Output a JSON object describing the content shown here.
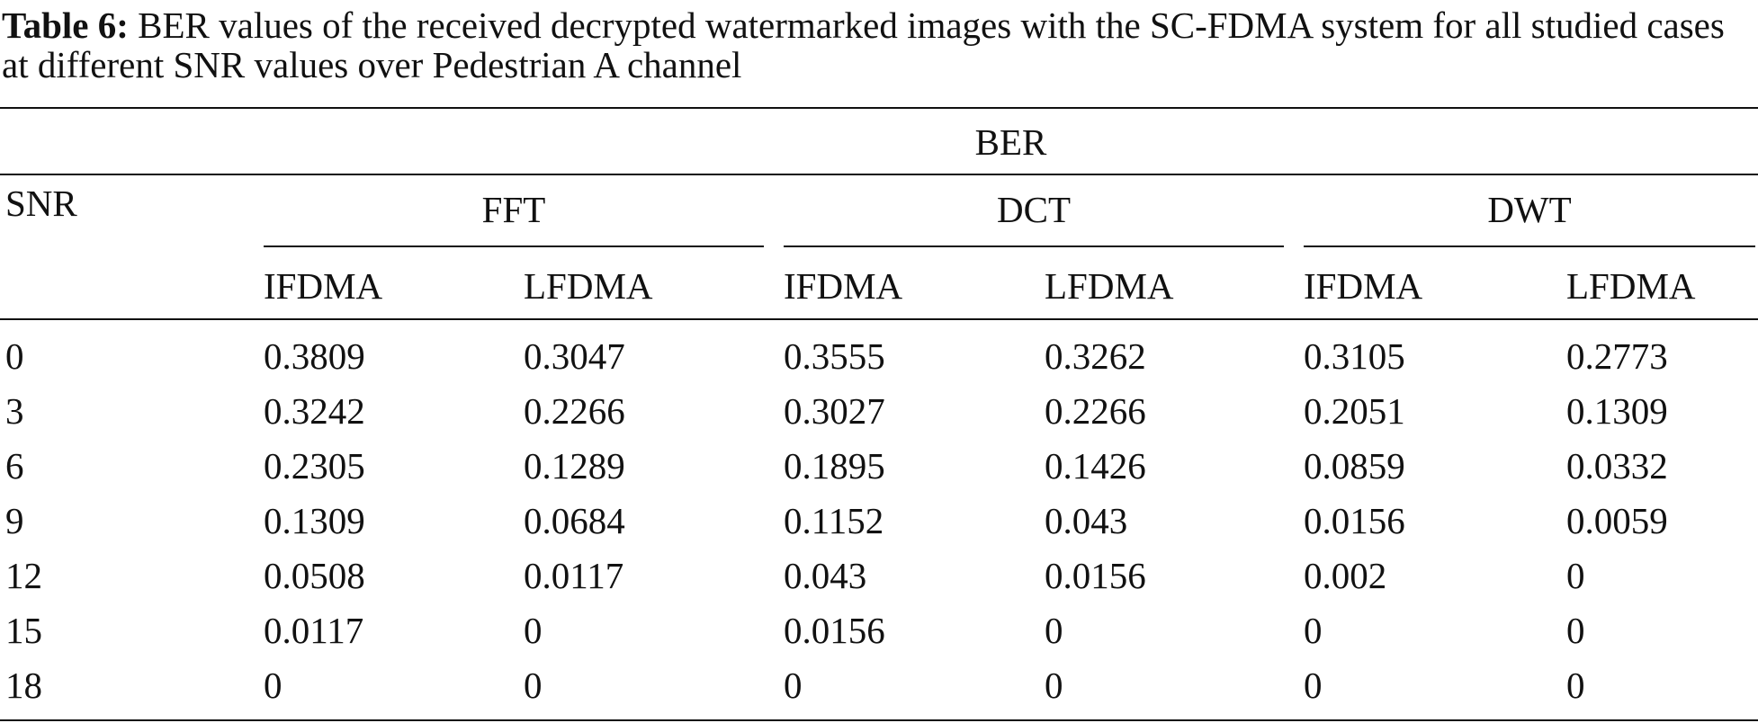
{
  "caption": {
    "label": "Table 6:",
    "text": "BER values of the received decrypted watermarked images with the SC-FDMA system for all studied cases at different SNR values over Pedestrian A channel"
  },
  "table": {
    "super_header": "BER",
    "row_header": "SNR",
    "groups": [
      "FFT",
      "DCT",
      "DWT"
    ],
    "subheaders": [
      "IFDMA",
      "LFDMA",
      "IFDMA",
      "LFDMA",
      "IFDMA",
      "LFDMA"
    ],
    "rows": [
      [
        0,
        0.3809,
        0.3047,
        0.3555,
        0.3262,
        0.3105,
        0.2773
      ],
      [
        3,
        0.3242,
        0.2266,
        0.3027,
        0.2266,
        0.2051,
        0.1309
      ],
      [
        6,
        0.2305,
        0.1289,
        0.1895,
        0.1426,
        0.0859,
        0.0332
      ],
      [
        9,
        0.1309,
        0.0684,
        0.1152,
        0.043,
        0.0156,
        0.0059
      ],
      [
        12,
        0.0508,
        0.0117,
        0.043,
        0.0156,
        0.002,
        0
      ],
      [
        15,
        0.0117,
        0,
        0.0156,
        0,
        0,
        0
      ],
      [
        18,
        0,
        0,
        0,
        0,
        0,
        0
      ]
    ]
  }
}
